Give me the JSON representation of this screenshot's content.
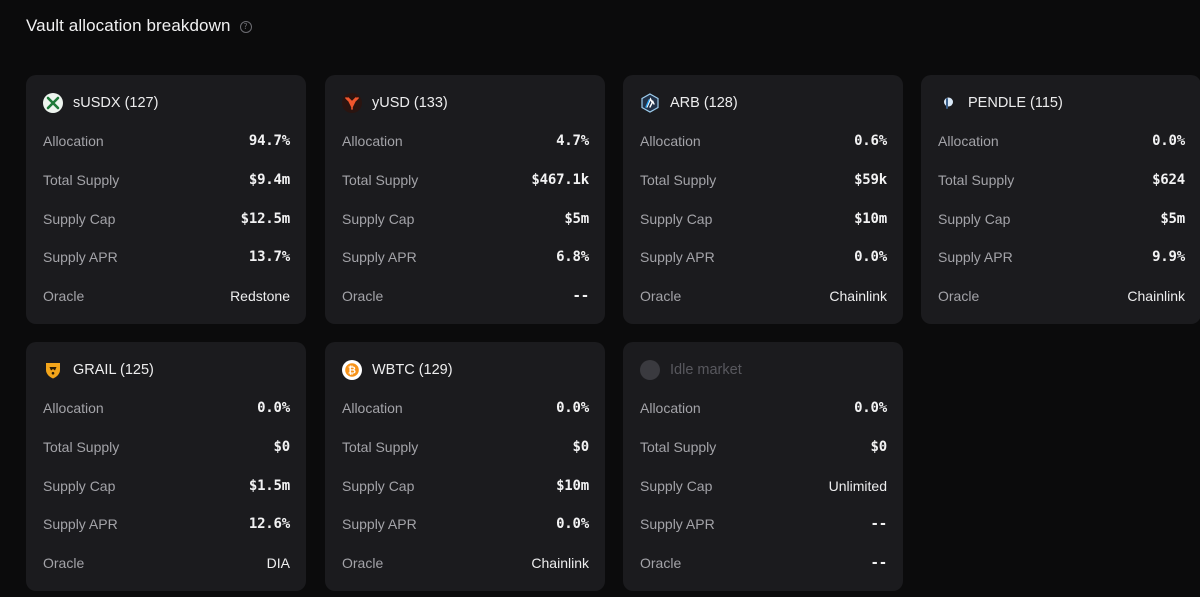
{
  "header": {
    "title": "Vault allocation breakdown",
    "help_icon": "question-circle-icon"
  },
  "labels": {
    "allocation": "Allocation",
    "total_supply": "Total Supply",
    "supply_cap": "Supply Cap",
    "supply_apr": "Supply APR",
    "oracle": "Oracle"
  },
  "cards": [
    {
      "name": "sUSDX (127)",
      "icon": "susdx-icon",
      "allocation": "94.7%",
      "total_supply": "$9.4m",
      "supply_cap": "$12.5m",
      "supply_apr": "13.7%",
      "oracle": "Redstone"
    },
    {
      "name": "yUSD (133)",
      "icon": "yusd-icon",
      "allocation": "4.7%",
      "total_supply": "$467.1k",
      "supply_cap": "$5m",
      "supply_apr": "6.8%",
      "oracle": "--"
    },
    {
      "name": "ARB (128)",
      "icon": "arb-icon",
      "allocation": "0.6%",
      "total_supply": "$59k",
      "supply_cap": "$10m",
      "supply_apr": "0.0%",
      "oracle": "Chainlink"
    },
    {
      "name": "PENDLE (115)",
      "icon": "pendle-icon",
      "allocation": "0.0%",
      "total_supply": "$624",
      "supply_cap": "$5m",
      "supply_apr": "9.9%",
      "oracle": "Chainlink"
    },
    {
      "name": "GRAIL (125)",
      "icon": "grail-icon",
      "allocation": "0.0%",
      "total_supply": "$0",
      "supply_cap": "$1.5m",
      "supply_apr": "12.6%",
      "oracle": "DIA"
    },
    {
      "name": "WBTC (129)",
      "icon": "wbtc-icon",
      "allocation": "0.0%",
      "total_supply": "$0",
      "supply_cap": "$10m",
      "supply_apr": "0.0%",
      "oracle": "Chainlink"
    },
    {
      "name": "Idle market",
      "icon": "idle-market-icon",
      "allocation": "0.0%",
      "total_supply": "$0",
      "supply_cap": "Unlimited",
      "supply_apr": "--",
      "oracle": "--"
    }
  ]
}
